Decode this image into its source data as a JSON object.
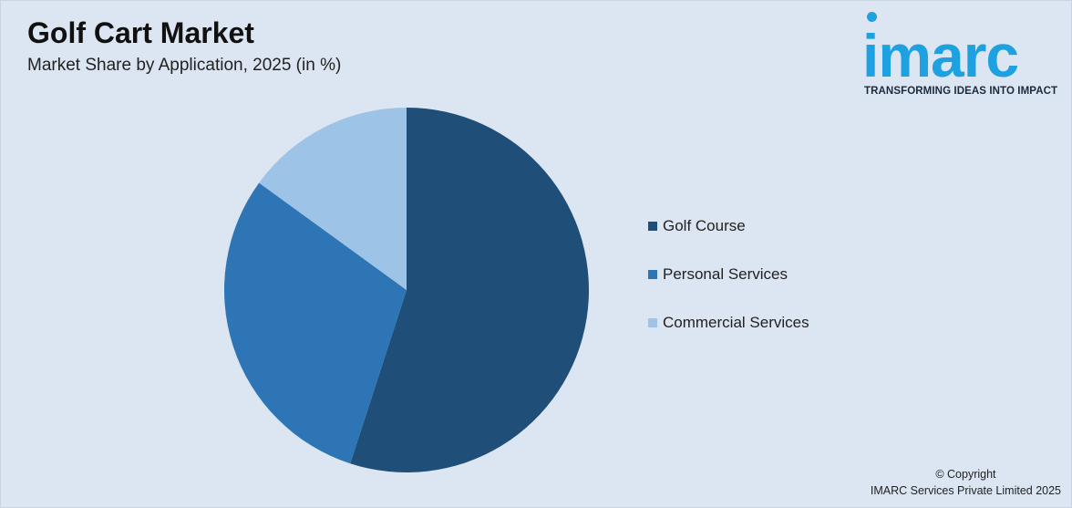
{
  "header": {
    "title": "Golf Cart Market",
    "subtitle": "Market Share by Application, 2025 (in %)"
  },
  "logo": {
    "wordmark": "imarc",
    "tagline": "TRANSFORMING IDEAS INTO IMPACT",
    "color": "#1ea1e0"
  },
  "chart_data": {
    "type": "pie",
    "title": "Golf Cart Market",
    "subtitle": "Market Share by Application, 2025 (in %)",
    "categories": [
      "Golf Course",
      "Personal Services",
      "Commercial Services"
    ],
    "values": [
      55,
      30,
      15
    ],
    "colors": [
      "#1f4e79",
      "#2e75b6",
      "#9dc3e6"
    ],
    "legend_position": "right",
    "start_angle": "top",
    "direction": "clockwise"
  },
  "footer": {
    "copyright_line1": "© Copyright",
    "copyright_line2": "IMARC Services Private Limited 2025"
  }
}
